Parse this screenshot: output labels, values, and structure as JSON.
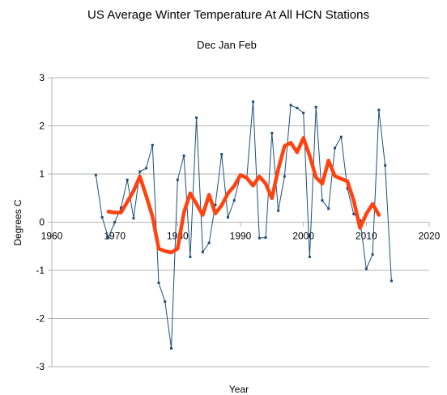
{
  "chart_data": {
    "type": "line",
    "title": "US Average Winter Temperature At All HCN Stations",
    "subtitle": "Dec Jan Feb",
    "xlabel": "Year",
    "ylabel": "Degrees C",
    "xlim": [
      1960,
      2020
    ],
    "ylim": [
      -3,
      3
    ],
    "xticks": [
      1960,
      1970,
      1980,
      1990,
      2000,
      2010,
      2020
    ],
    "yticks": [
      -3,
      -2,
      -1,
      0,
      1,
      2,
      3
    ],
    "grid": "horizontal",
    "legend": "none",
    "colors": {
      "annual": "#1f4e79",
      "smoothed": "#ff420e",
      "grid": "#b3b3b3",
      "axis": "#b3b3b3"
    },
    "series": [
      {
        "style": "thin-line-with-markers",
        "x": [
          1967,
          1968,
          1969,
          1970,
          1971,
          1972,
          1973,
          1974,
          1975,
          1976,
          1977,
          1978,
          1979,
          1980,
          1981,
          1982,
          1983,
          1984,
          1985,
          1986,
          1987,
          1988,
          1989,
          1990,
          1991,
          1992,
          1993,
          1994,
          1995,
          1996,
          1997,
          1998,
          1999,
          2000,
          2001,
          2002,
          2003,
          2004,
          2005,
          2006,
          2007,
          2008,
          2009,
          2010,
          2011,
          2012,
          2013,
          2014
        ],
        "values": [
          0.98,
          0.1,
          -0.32,
          0.0,
          0.3,
          0.88,
          0.08,
          1.05,
          1.12,
          1.6,
          -1.26,
          -1.65,
          -2.62,
          0.88,
          1.38,
          -0.72,
          2.17,
          -0.62,
          -0.43,
          0.36,
          1.41,
          0.1,
          0.45,
          0.97,
          0.93,
          2.5,
          -0.33,
          -0.32,
          1.85,
          0.24,
          0.95,
          2.43,
          2.37,
          2.27,
          -0.72,
          2.39,
          0.45,
          0.28,
          1.54,
          1.77,
          0.7,
          0.17,
          0.04,
          -0.97,
          -0.67,
          2.33,
          1.18,
          -1.22
        ]
      },
      {
        "style": "thick-smoothed-line",
        "x": [
          1969,
          1970,
          1971,
          1972,
          1973,
          1974,
          1975,
          1976,
          1977,
          1978,
          1979,
          1980,
          1981,
          1982,
          1983,
          1984,
          1985,
          1986,
          1987,
          1988,
          1989,
          1990,
          1991,
          1992,
          1993,
          1994,
          1995,
          1996,
          1997,
          1998,
          1999,
          2000,
          2001,
          2002,
          2003,
          2004,
          2005,
          2006,
          2007,
          2008,
          2009,
          2010,
          2011,
          2012
        ],
        "values": [
          0.22,
          0.2,
          0.2,
          0.42,
          0.65,
          0.95,
          0.55,
          0.12,
          -0.55,
          -0.6,
          -0.63,
          -0.55,
          0.2,
          0.6,
          0.38,
          0.15,
          0.57,
          0.18,
          0.35,
          0.6,
          0.75,
          0.98,
          0.92,
          0.76,
          0.95,
          0.8,
          0.5,
          1.1,
          1.58,
          1.65,
          1.45,
          1.75,
          1.38,
          0.93,
          0.8,
          1.28,
          0.96,
          0.9,
          0.85,
          0.45,
          -0.12,
          0.17,
          0.38,
          0.15
        ]
      }
    ]
  }
}
